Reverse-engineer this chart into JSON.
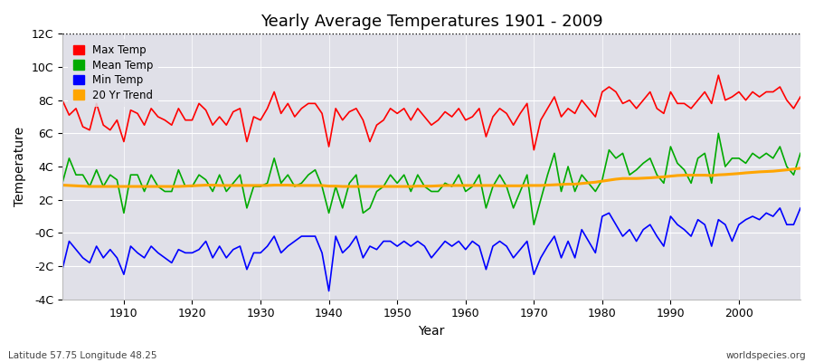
{
  "title": "Yearly Average Temperatures 1901 - 2009",
  "xlabel": "Year",
  "ylabel": "Temperature",
  "subtitle_left": "Latitude 57.75 Longitude 48.25",
  "subtitle_right": "worldspecies.org",
  "ylim": [
    -4,
    12
  ],
  "ytick_vals": [
    -4,
    -2,
    0,
    2,
    4,
    6,
    8,
    10,
    12
  ],
  "ytick_labels": [
    "-4C",
    "-2C",
    "-0C",
    "2C",
    "4C",
    "6C",
    "8C",
    "10C",
    "12C"
  ],
  "xlim": [
    1901,
    2009
  ],
  "xtick_vals": [
    1910,
    1920,
    1930,
    1940,
    1950,
    1960,
    1970,
    1980,
    1990,
    2000
  ],
  "fig_bg": "#ffffff",
  "plot_bg": "#e0e0e8",
  "grid_color": "#ffffff",
  "years": [
    1901,
    1902,
    1903,
    1904,
    1905,
    1906,
    1907,
    1908,
    1909,
    1910,
    1911,
    1912,
    1913,
    1914,
    1915,
    1916,
    1917,
    1918,
    1919,
    1920,
    1921,
    1922,
    1923,
    1924,
    1925,
    1926,
    1927,
    1928,
    1929,
    1930,
    1931,
    1932,
    1933,
    1934,
    1935,
    1936,
    1937,
    1938,
    1939,
    1940,
    1941,
    1942,
    1943,
    1944,
    1945,
    1946,
    1947,
    1948,
    1949,
    1950,
    1951,
    1952,
    1953,
    1954,
    1955,
    1956,
    1957,
    1958,
    1959,
    1960,
    1961,
    1962,
    1963,
    1964,
    1965,
    1966,
    1967,
    1968,
    1969,
    1970,
    1971,
    1972,
    1973,
    1974,
    1975,
    1976,
    1977,
    1978,
    1979,
    1980,
    1981,
    1982,
    1983,
    1984,
    1985,
    1986,
    1987,
    1988,
    1989,
    1990,
    1991,
    1992,
    1993,
    1994,
    1995,
    1996,
    1997,
    1998,
    1999,
    2000,
    2001,
    2002,
    2003,
    2004,
    2005,
    2006,
    2007,
    2008,
    2009
  ],
  "max_temp": [
    8.0,
    7.1,
    7.5,
    6.4,
    6.2,
    7.8,
    6.5,
    6.2,
    6.8,
    5.5,
    7.4,
    7.2,
    6.5,
    7.5,
    7.0,
    6.8,
    6.5,
    7.5,
    6.8,
    6.8,
    7.8,
    7.4,
    6.5,
    7.0,
    6.5,
    7.3,
    7.5,
    5.5,
    7.0,
    6.8,
    7.5,
    8.5,
    7.2,
    7.8,
    7.0,
    7.5,
    7.8,
    7.8,
    7.2,
    5.2,
    7.5,
    6.8,
    7.3,
    7.5,
    6.8,
    5.5,
    6.5,
    6.8,
    7.5,
    7.2,
    7.5,
    6.8,
    7.5,
    7.0,
    6.5,
    6.8,
    7.3,
    7.0,
    7.5,
    6.8,
    7.0,
    7.5,
    5.8,
    7.0,
    7.5,
    7.2,
    6.5,
    7.2,
    7.8,
    5.0,
    6.8,
    7.5,
    8.2,
    7.0,
    7.5,
    7.2,
    8.0,
    7.5,
    7.0,
    8.5,
    8.8,
    8.5,
    7.8,
    8.0,
    7.5,
    8.0,
    8.5,
    7.5,
    7.2,
    8.5,
    7.8,
    7.8,
    7.5,
    8.0,
    8.5,
    7.8,
    9.5,
    8.0,
    8.2,
    8.5,
    8.0,
    8.5,
    8.2,
    8.5,
    8.5,
    8.8,
    8.0,
    7.5,
    8.2
  ],
  "mean_temp": [
    3.0,
    4.5,
    3.5,
    3.5,
    2.8,
    3.8,
    2.8,
    3.5,
    3.2,
    1.2,
    3.5,
    3.5,
    2.5,
    3.5,
    2.8,
    2.5,
    2.5,
    3.8,
    2.8,
    2.8,
    3.5,
    3.2,
    2.5,
    3.5,
    2.5,
    3.0,
    3.5,
    1.5,
    2.8,
    2.8,
    3.0,
    4.5,
    3.0,
    3.5,
    2.8,
    3.0,
    3.5,
    3.8,
    2.8,
    1.2,
    2.8,
    1.5,
    3.0,
    3.5,
    1.2,
    1.5,
    2.5,
    2.8,
    3.5,
    3.0,
    3.5,
    2.5,
    3.5,
    2.8,
    2.5,
    2.5,
    3.0,
    2.8,
    3.5,
    2.5,
    2.8,
    3.5,
    1.5,
    2.8,
    3.5,
    2.8,
    1.5,
    2.5,
    3.5,
    0.5,
    2.0,
    3.5,
    4.8,
    2.5,
    4.0,
    2.5,
    3.5,
    3.0,
    2.5,
    3.2,
    5.0,
    4.5,
    4.8,
    3.5,
    3.8,
    4.2,
    4.5,
    3.5,
    3.0,
    5.2,
    4.2,
    3.8,
    3.0,
    4.5,
    4.8,
    3.0,
    6.0,
    4.0,
    4.5,
    4.5,
    4.2,
    4.8,
    4.5,
    4.8,
    4.5,
    5.2,
    4.0,
    3.5,
    4.8
  ],
  "min_temp": [
    -2.2,
    -0.5,
    -1.0,
    -1.5,
    -1.8,
    -0.8,
    -1.5,
    -1.0,
    -1.5,
    -2.5,
    -0.8,
    -1.2,
    -1.5,
    -0.8,
    -1.2,
    -1.5,
    -1.8,
    -1.0,
    -1.2,
    -1.2,
    -1.0,
    -0.5,
    -1.5,
    -0.8,
    -1.5,
    -1.0,
    -0.8,
    -2.2,
    -1.2,
    -1.2,
    -0.8,
    -0.2,
    -1.2,
    -0.8,
    -0.5,
    -0.2,
    -0.2,
    -0.2,
    -1.2,
    -3.5,
    -0.2,
    -1.2,
    -0.8,
    -0.2,
    -1.5,
    -0.8,
    -1.0,
    -0.5,
    -0.5,
    -0.8,
    -0.5,
    -0.8,
    -0.5,
    -0.8,
    -1.5,
    -1.0,
    -0.5,
    -0.8,
    -0.5,
    -1.0,
    -0.5,
    -0.8,
    -2.2,
    -0.8,
    -0.5,
    -0.8,
    -1.5,
    -1.0,
    -0.5,
    -2.5,
    -1.5,
    -0.8,
    -0.2,
    -1.5,
    -0.5,
    -1.5,
    0.2,
    -0.5,
    -1.2,
    1.0,
    1.2,
    0.5,
    -0.2,
    0.2,
    -0.5,
    0.2,
    0.5,
    -0.2,
    -0.8,
    1.0,
    0.5,
    0.2,
    -0.2,
    0.8,
    0.5,
    -0.8,
    0.8,
    0.5,
    -0.5,
    0.5,
    0.8,
    1.0,
    0.8,
    1.2,
    1.0,
    1.5,
    0.5,
    0.5,
    1.5
  ],
  "trend_20yr": [
    2.88,
    2.86,
    2.84,
    2.82,
    2.8,
    2.8,
    2.8,
    2.8,
    2.8,
    2.8,
    2.8,
    2.8,
    2.8,
    2.8,
    2.8,
    2.8,
    2.8,
    2.8,
    2.82,
    2.84,
    2.86,
    2.88,
    2.88,
    2.86,
    2.86,
    2.86,
    2.86,
    2.86,
    2.86,
    2.86,
    2.86,
    2.88,
    2.88,
    2.88,
    2.86,
    2.86,
    2.86,
    2.86,
    2.86,
    2.82,
    2.82,
    2.8,
    2.8,
    2.8,
    2.8,
    2.8,
    2.8,
    2.8,
    2.8,
    2.8,
    2.8,
    2.8,
    2.82,
    2.82,
    2.82,
    2.84,
    2.86,
    2.86,
    2.86,
    2.86,
    2.86,
    2.86,
    2.86,
    2.86,
    2.84,
    2.84,
    2.84,
    2.84,
    2.86,
    2.86,
    2.86,
    2.88,
    2.9,
    2.92,
    2.94,
    2.94,
    2.98,
    3.02,
    3.06,
    3.12,
    3.18,
    3.24,
    3.28,
    3.28,
    3.28,
    3.3,
    3.32,
    3.35,
    3.38,
    3.42,
    3.46,
    3.48,
    3.48,
    3.48,
    3.48,
    3.46,
    3.5,
    3.52,
    3.55,
    3.58,
    3.62,
    3.65,
    3.68,
    3.7,
    3.72,
    3.76,
    3.8,
    3.85,
    3.9
  ],
  "legend": [
    {
      "label": "Max Temp",
      "color": "#ff0000"
    },
    {
      "label": "Mean Temp",
      "color": "#00aa00"
    },
    {
      "label": "Min Temp",
      "color": "#0000ff"
    },
    {
      "label": "20 Yr Trend",
      "color": "#ffa500"
    }
  ]
}
